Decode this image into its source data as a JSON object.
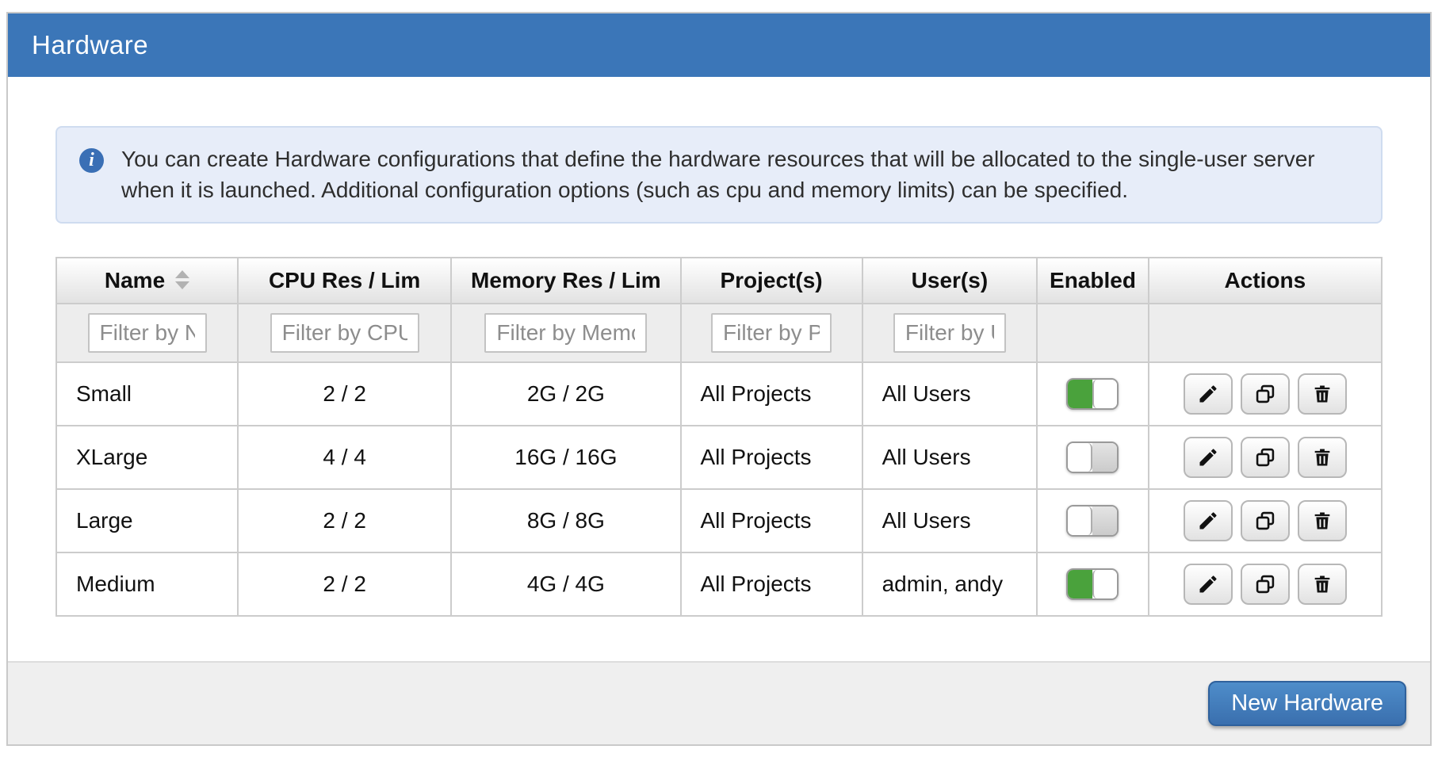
{
  "panel": {
    "title": "Hardware"
  },
  "alert": {
    "icon_glyph": "i",
    "text": "You can create Hardware configurations that define the hardware resources that will be allocated to the single-user server when it is launched. Additional configuration options (such as cpu and memory limits) can be specified."
  },
  "table": {
    "columns": [
      {
        "label": "Name",
        "sortable": true,
        "filter_placeholder": "Filter by Name"
      },
      {
        "label": "CPU Res / Lim",
        "sortable": false,
        "filter_placeholder": "Filter by CPU Res / Lim"
      },
      {
        "label": "Memory Res / Lim",
        "sortable": false,
        "filter_placeholder": "Filter by Memory Res / Lim"
      },
      {
        "label": "Project(s)",
        "sortable": false,
        "filter_placeholder": "Filter by Project(s)"
      },
      {
        "label": "User(s)",
        "sortable": false,
        "filter_placeholder": "Filter by User(s)"
      },
      {
        "label": "Enabled",
        "sortable": false,
        "filter_placeholder": null
      },
      {
        "label": "Actions",
        "sortable": false,
        "filter_placeholder": null
      }
    ],
    "rows": [
      {
        "name": "Small",
        "cpu": "2 / 2",
        "memory": "2G / 2G",
        "projects": "All Projects",
        "users": "All Users",
        "enabled": true
      },
      {
        "name": "XLarge",
        "cpu": "4 / 4",
        "memory": "16G / 16G",
        "projects": "All Projects",
        "users": "All Users",
        "enabled": false
      },
      {
        "name": "Large",
        "cpu": "2 / 2",
        "memory": "8G / 8G",
        "projects": "All Projects",
        "users": "All Users",
        "enabled": false
      },
      {
        "name": "Medium",
        "cpu": "2 / 2",
        "memory": "4G / 4G",
        "projects": "All Projects",
        "users": "admin, andy",
        "enabled": true
      }
    ],
    "actions": [
      "edit",
      "copy",
      "delete"
    ]
  },
  "footer": {
    "new_button_label": "New Hardware"
  },
  "colors": {
    "header_blue": "#3b76b8",
    "toggle_on_green": "#4aa23c",
    "alert_background": "#e7edf9",
    "primary_button_top": "#4e8dca",
    "primary_button_bottom": "#3a6fae"
  }
}
